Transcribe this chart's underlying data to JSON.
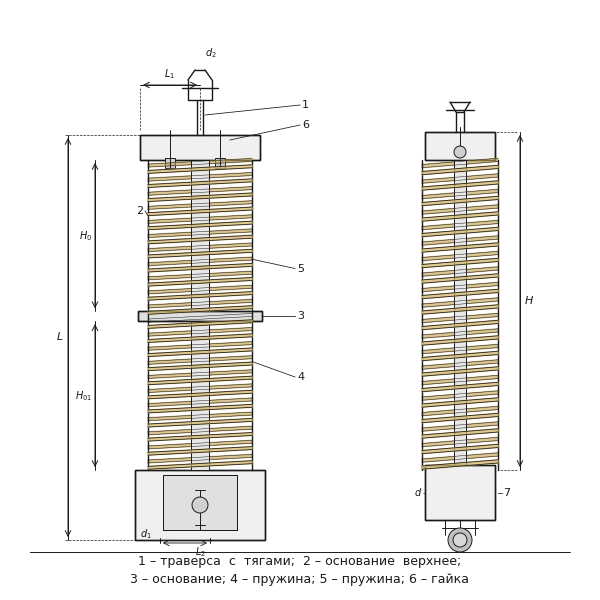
{
  "bg_color": "#ffffff",
  "line_color": "#1a1a1a",
  "spring_color": "#8B7355",
  "caption_line1": "1 – траверса  с  тягами;  2 – основание  верхнее;",
  "caption_line2": "3 – основание; 4 – пружина; 5 – пружина; 6 – гайка",
  "font_size_caption": 9,
  "font_size_label": 8
}
